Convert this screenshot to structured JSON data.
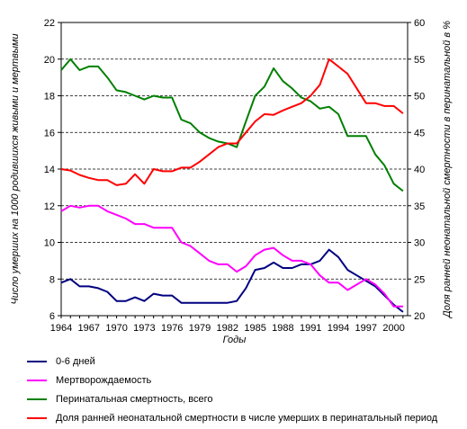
{
  "chart_data": {
    "type": "line",
    "xlabel": "Годы",
    "ylabel_left": "Число умерших на 1000 родившихся живыми и мертвыми",
    "ylabel_right": "Доля ранней неонатальной смертности в перинатальной в %",
    "ylim_left": [
      6,
      22
    ],
    "ylim_right": [
      20,
      60
    ],
    "yticks_left": [
      "6",
      "8",
      "10",
      "12",
      "14",
      "16",
      "18",
      "20",
      "22"
    ],
    "yticks_right": [
      "20",
      "25",
      "30",
      "35",
      "40",
      "45",
      "50",
      "55",
      "60"
    ],
    "xlim": [
      1964,
      2001.5
    ],
    "xticks": [
      "1964",
      "1967",
      "1970",
      "1973",
      "1976",
      "1979",
      "1982",
      "1985",
      "1988",
      "1991",
      "1994",
      "1997",
      "2000"
    ],
    "grid": "horizontal dashed",
    "legend_position": "bottom",
    "x": [
      1964,
      1965,
      1966,
      1967,
      1968,
      1969,
      1970,
      1971,
      1972,
      1973,
      1974,
      1975,
      1976,
      1977,
      1978,
      1979,
      1980,
      1981,
      1982,
      1983,
      1984,
      1985,
      1986,
      1987,
      1988,
      1989,
      1990,
      1991,
      1992,
      1993,
      1994,
      1995,
      1996,
      1997,
      1998,
      1999,
      2000,
      2001
    ],
    "series": [
      {
        "name": "0-6 дней",
        "axis": "left",
        "color": "#000080",
        "values": [
          7.8,
          8.0,
          7.6,
          7.6,
          7.5,
          7.3,
          6.8,
          6.8,
          7.0,
          6.8,
          7.2,
          7.1,
          7.1,
          6.7,
          6.7,
          6.7,
          6.7,
          6.7,
          6.7,
          6.8,
          7.5,
          8.5,
          8.6,
          8.9,
          8.6,
          8.6,
          8.8,
          8.8,
          9.0,
          9.6,
          9.2,
          8.5,
          8.2,
          7.9,
          7.6,
          7.1,
          6.6,
          6.2
        ]
      },
      {
        "name": "Мертворождаемость",
        "axis": "left",
        "color": "#ff00ff",
        "values": [
          11.7,
          12.0,
          11.9,
          12.0,
          12.0,
          11.7,
          11.5,
          11.3,
          11.0,
          11.0,
          10.8,
          10.8,
          10.8,
          10.0,
          9.8,
          9.4,
          9.0,
          8.8,
          8.8,
          8.4,
          8.7,
          9.3,
          9.6,
          9.7,
          9.3,
          9.0,
          9.0,
          8.8,
          8.2,
          7.8,
          7.8,
          7.4,
          7.7,
          8.0,
          7.7,
          7.2,
          6.5,
          6.5
        ]
      },
      {
        "name": "Перинатальная смертность, всего",
        "axis": "left",
        "color": "#008000",
        "values": [
          19.4,
          20.0,
          19.4,
          19.6,
          19.6,
          19.0,
          18.3,
          18.2,
          18.0,
          17.8,
          18.0,
          17.9,
          17.9,
          16.7,
          16.5,
          16.0,
          15.7,
          15.5,
          15.4,
          15.2,
          16.6,
          18.0,
          18.5,
          19.5,
          18.8,
          18.4,
          17.9,
          17.7,
          17.3,
          17.4,
          17.0,
          15.8,
          15.8,
          15.8,
          14.8,
          14.2,
          13.2,
          12.8
        ]
      },
      {
        "name": "Доля  ранней неонатальной смертности в числе умерших в перинатальный период",
        "axis": "right",
        "color": "#ff0000",
        "values": [
          40.0,
          39.8,
          39.2,
          38.8,
          38.5,
          38.5,
          37.8,
          38.0,
          39.3,
          38.0,
          40.0,
          39.7,
          39.7,
          40.2,
          40.2,
          41.0,
          42.0,
          43.0,
          43.5,
          43.5,
          45.0,
          46.5,
          47.5,
          47.4,
          48.0,
          48.5,
          49.0,
          50.0,
          51.5,
          55.0,
          54.0,
          53.0,
          51.0,
          49.0,
          49.0,
          48.6,
          48.6,
          47.6
        ]
      }
    ]
  }
}
